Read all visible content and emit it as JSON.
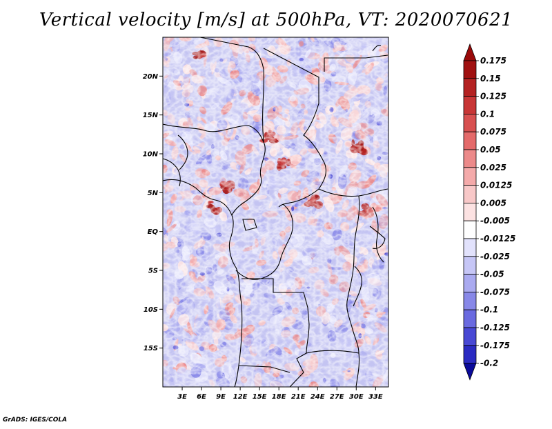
{
  "title": "Vertical velocity [m/s] at 500hPa, VT: 2020070621",
  "footer": "GrADS: IGES/COLA",
  "map": {
    "lat_range": [
      -20,
      25
    ],
    "lon_range": [
      0,
      35
    ],
    "lat_ticks": [
      {
        "value": 20,
        "label": "20N"
      },
      {
        "value": 15,
        "label": "15N"
      },
      {
        "value": 10,
        "label": "10N"
      },
      {
        "value": 5,
        "label": "5N"
      },
      {
        "value": 0,
        "label": "EQ"
      },
      {
        "value": -5,
        "label": "5S"
      },
      {
        "value": -10,
        "label": "10S"
      },
      {
        "value": -15,
        "label": "15S"
      }
    ],
    "lon_ticks": [
      {
        "value": 3,
        "label": "3E"
      },
      {
        "value": 6,
        "label": "6E"
      },
      {
        "value": 9,
        "label": "9E"
      },
      {
        "value": 12,
        "label": "12E"
      },
      {
        "value": 15,
        "label": "15E"
      },
      {
        "value": 18,
        "label": "18E"
      },
      {
        "value": 21,
        "label": "21E"
      },
      {
        "value": 24,
        "label": "24E"
      },
      {
        "value": 27,
        "label": "27E"
      },
      {
        "value": 30,
        "label": "30E"
      },
      {
        "value": 33,
        "label": "33E"
      }
    ]
  },
  "legend": {
    "levels": [
      {
        "label": "0.175",
        "color": "#a01010"
      },
      {
        "label": "0.15",
        "color": "#b42222"
      },
      {
        "label": "0.125",
        "color": "#c83636"
      },
      {
        "label": "0.1",
        "color": "#d85050"
      },
      {
        "label": "0.075",
        "color": "#e46a6a"
      },
      {
        "label": "0.05",
        "color": "#ec8a8a"
      },
      {
        "label": "0.025",
        "color": "#f4aaaa"
      },
      {
        "label": "0.0125",
        "color": "#f8c8c8"
      },
      {
        "label": "0.005",
        "color": "#fce2e2"
      },
      {
        "label": "-0.005",
        "color": "#ffffff"
      },
      {
        "label": "-0.0125",
        "color": "#e2e2fc"
      },
      {
        "label": "-0.025",
        "color": "#c6c6f6"
      },
      {
        "label": "-0.05",
        "color": "#aaaaf0"
      },
      {
        "label": "-0.075",
        "color": "#8888e8"
      },
      {
        "label": "-0.1",
        "color": "#6a6ae0"
      },
      {
        "label": "-0.125",
        "color": "#4848d4"
      },
      {
        "label": "-0.175",
        "color": "#2a2ac2"
      },
      {
        "label": "-0.2",
        "color": "#1010a8"
      }
    ],
    "top_color": "#9a0a0a",
    "bottom_color": "#0a0a9a"
  }
}
